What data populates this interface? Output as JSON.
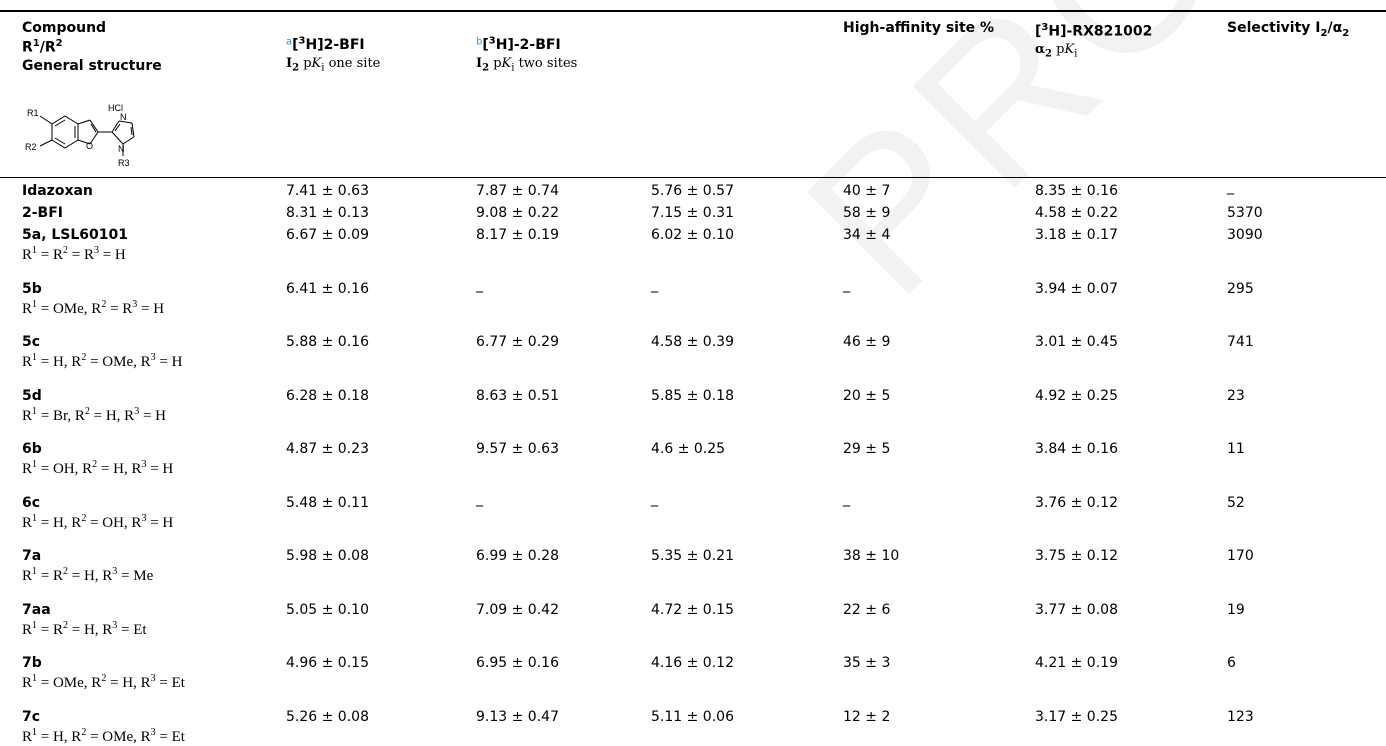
{
  "caption": "",
  "watermark": "PROOF",
  "header": {
    "col1": {
      "line1": "Compound",
      "line2_html": "R<sup>1</sup>/R<sup>2</sup>",
      "line3": "General structure"
    },
    "col2": {
      "mark": "a",
      "title_html": "[<sup>3</sup>H]2-BFI",
      "sub_html": "<b>I</b><sub><b>2</b></sub> p<i>K</i><sub>i</sub> one site"
    },
    "col3": {
      "mark": "b",
      "title_html": "[<sup>3</sup>H]-2-BFI",
      "sub_html": "<b>I</b><sub><b>2</b></sub> p<i>K</i><sub>i</sub> two sites"
    },
    "col5": {
      "title": "High-affinity site %"
    },
    "col6": {
      "title_html": "[<sup>3</sup>H]-RX821002",
      "sub_html": "<b>&alpha;<sub>2</sub></b> p<i>K</i><sub>i</sub>"
    },
    "col7": {
      "title_html": "Selectivity I<sub>2</sub>/&alpha;<sub>2</sub>"
    }
  },
  "structure_labels": {
    "hcl": "HCl",
    "n1": "N",
    "n2": "N",
    "o": "O",
    "r1": "R1",
    "r2": "R2",
    "r3": "R3"
  },
  "rows": [
    {
      "name": "Idazoxan",
      "subst_html": "",
      "v1": "7.41 ± 0.63",
      "v2": "7.87 ± 0.74",
      "v3": "5.76 ± 0.57",
      "v4": "40 ± 7",
      "v5": "8.35 ± 0.16",
      "v6": "_"
    },
    {
      "name": "2-BFI",
      "subst_html": "",
      "v1": "8.31 ± 0.13",
      "v2": "9.08 ± 0.22",
      "v3": "7.15 ± 0.31",
      "v4": "58 ± 9",
      "v5": "4.58 ± 0.22",
      "v6": "5370"
    },
    {
      "name": "5a, LSL60101",
      "subst_html": "R<sup>1</sup> = R<sup>2</sup> = R<sup>3</sup> = H",
      "v1": "6.67 ± 0.09",
      "v2": "8.17 ± 0.19",
      "v3": "6.02 ± 0.10",
      "v4": "34 ± 4",
      "v5": "3.18 ± 0.17",
      "v6": "3090"
    },
    {
      "name": "5b",
      "subst_html": "R<sup>1</sup> = OMe, R<sup>2</sup> = R<sup>3</sup> = H",
      "v1": "6.41 ± 0.16",
      "v2": "_",
      "v3": "_",
      "v4": "_",
      "v5": "3.94 ± 0.07",
      "v6": "295"
    },
    {
      "name": "5c",
      "subst_html": "R<sup>1</sup> = H, R<sup>2</sup> = OMe, R<sup>3</sup> = H",
      "v1": "5.88 ± 0.16",
      "v2": "6.77 ± 0.29",
      "v3": "4.58 ± 0.39",
      "v4": "46 ± 9",
      "v5": "3.01 ± 0.45",
      "v6": "741"
    },
    {
      "name": "5d",
      "subst_html": "R<sup>1</sup> = Br, R<sup>2</sup> = H, R<sup>3</sup> = H",
      "v1": "6.28 ± 0.18",
      "v2": "8.63 ± 0.51",
      "v3": "5.85 ± 0.18",
      "v4": "20 ± 5",
      "v5": "4.92 ± 0.25",
      "v6": "23"
    },
    {
      "name": "6b",
      "subst_html": "R<sup>1</sup> = OH, R<sup>2</sup> = H, R<sup>3</sup> = H",
      "v1": "4.87 ± 0.23",
      "v2": "9.57 ± 0.63",
      "v3": "4.6 ± 0.25",
      "v4": "29 ± 5",
      "v5": "3.84 ± 0.16",
      "v6": "11"
    },
    {
      "name": "6c",
      "subst_html": "R<sup>1</sup> = H, R<sup>2</sup> = OH, R<sup>3</sup> = H",
      "v1": "5.48 ± 0.11",
      "v2": "_",
      "v3": "_",
      "v4": "_",
      "v5": "3.76 ± 0.12",
      "v6": "52"
    },
    {
      "name": "7a",
      "subst_html": "R<sup>1</sup> = R<sup>2</sup> = H, R<sup>3</sup> = Me",
      "v1": "5.98 ± 0.08",
      "v2": "6.99 ± 0.28",
      "v3": "5.35 ± 0.21",
      "v4": "38 ± 10",
      "v5": "3.75 ± 0.12",
      "v6": "170"
    },
    {
      "name": "7aa",
      "subst_html": "R<sup>1</sup> = R<sup>2</sup> = H, R<sup>3</sup> = Et",
      "v1": "5.05 ± 0.10",
      "v2": "7.09 ± 0.42",
      "v3": "4.72 ± 0.15",
      "v4": "22 ± 6",
      "v5": "3.77 ± 0.08",
      "v6": "19"
    },
    {
      "name": "7b",
      "subst_html": "R<sup>1</sup> = OMe, R<sup>2</sup> = H, R<sup>3</sup> = Et",
      "v1": "4.96 ± 0.15",
      "v2": "6.95 ± 0.16",
      "v3": "4.16 ± 0.12",
      "v4": "35 ± 3",
      "v5": "4.21 ± 0.19",
      "v6": "6"
    },
    {
      "name": "7c",
      "subst_html": "R<sup>1</sup> = H, R<sup>2</sup> = OMe, R<sup>3</sup> = Et",
      "v1": "5.26 ± 0.08",
      "v2": "9.13 ± 0.47",
      "v3": "5.11 ± 0.06",
      "v4": "12 ± 2",
      "v5": "3.17 ± 0.25",
      "v6": "123"
    }
  ]
}
